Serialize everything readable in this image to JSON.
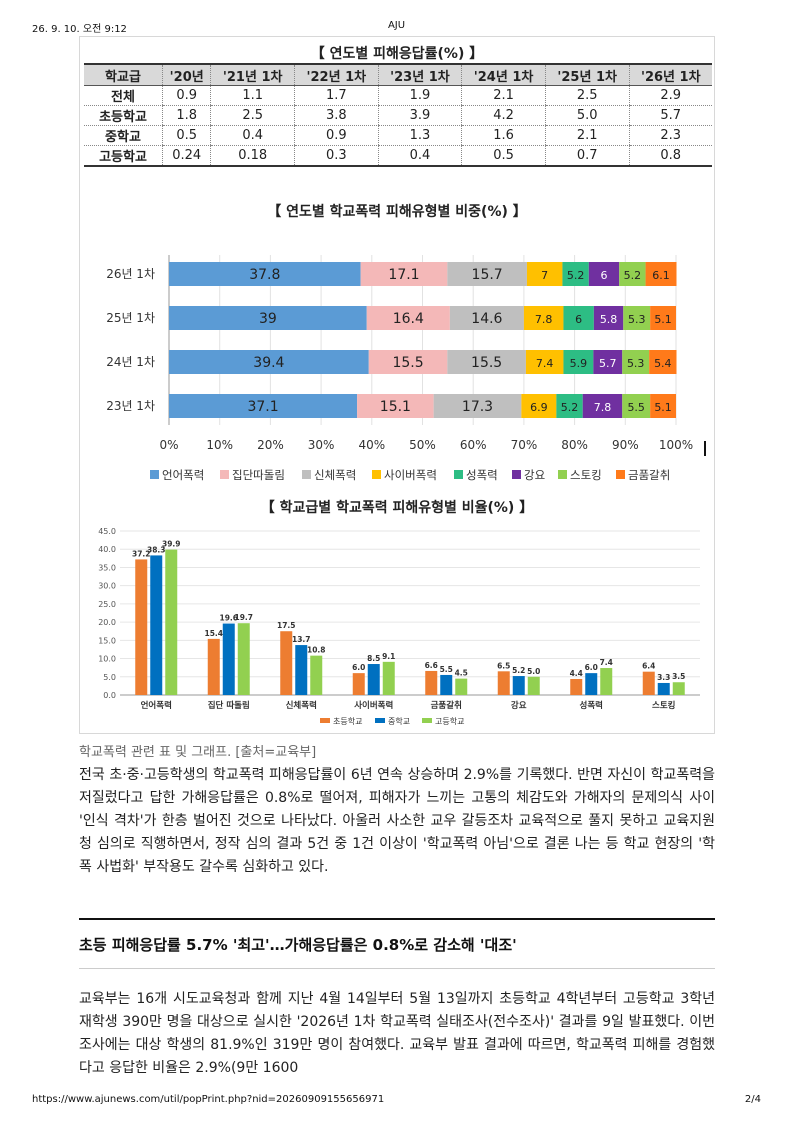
{
  "print_header": {
    "datetime": "26. 9. 10. 오전 9:12",
    "site": "AJU"
  },
  "print_footer": {
    "url": "https://www.ajunews.com/util/popPrint.php?nid=20260909155656971",
    "page": "2/4"
  },
  "table_rate": {
    "title": "【 연도별 피해응답률(%) 】",
    "columns": [
      "학교급",
      "'20년",
      "'21년 1차",
      "'22년 1차",
      "'23년 1차",
      "'24년 1차",
      "'25년 1차",
      "'26년 1차"
    ],
    "rows": [
      [
        "전체",
        "0.9",
        "1.1",
        "1.7",
        "1.9",
        "2.1",
        "2.5",
        "2.9"
      ],
      [
        "초등학교",
        "1.8",
        "2.5",
        "3.8",
        "3.9",
        "4.2",
        "5.0",
        "5.7"
      ],
      [
        "중학교",
        "0.5",
        "0.4",
        "0.9",
        "1.3",
        "1.6",
        "2.1",
        "2.3"
      ],
      [
        "고등학교",
        "0.24",
        "0.18",
        "0.3",
        "0.4",
        "0.5",
        "0.7",
        "0.8"
      ]
    ]
  },
  "chart_data": [
    {
      "type": "bar",
      "orientation": "horizontal-stacked",
      "title": "【 연도별 학교폭력 피해유형별 비중(%) 】",
      "categories": [
        "26년 1차",
        "25년 1차",
        "24년 1차",
        "23년 1차"
      ],
      "x_ticks": [
        "0%",
        "10%",
        "20%",
        "30%",
        "40%",
        "50%",
        "60%",
        "70%",
        "80%",
        "90%",
        "100%"
      ],
      "xlim": [
        0,
        100
      ],
      "legend_position": "bottom",
      "series": [
        {
          "name": "언어폭력",
          "color": "#5b9bd5",
          "values": [
            37.8,
            39,
            39.4,
            37.1
          ]
        },
        {
          "name": "집단따돌림",
          "color": "#f4b8b8",
          "values": [
            17.1,
            16.4,
            15.5,
            15.1
          ]
        },
        {
          "name": "신체폭력",
          "color": "#bfbfbf",
          "values": [
            15.7,
            14.6,
            15.5,
            17.3
          ]
        },
        {
          "name": "사이버폭력",
          "color": "#ffc000",
          "values": [
            7,
            7.8,
            7.4,
            6.9
          ]
        },
        {
          "name": "성폭력",
          "color": "#2dbd84",
          "values": [
            5.2,
            6,
            5.9,
            5.2
          ]
        },
        {
          "name": "강요",
          "color": "#7030a0",
          "values": [
            6,
            5.8,
            5.7,
            7.8
          ]
        },
        {
          "name": "스토킹",
          "color": "#92d050",
          "values": [
            5.2,
            5.3,
            5.3,
            5.5
          ]
        },
        {
          "name": "금품갈취",
          "color": "#ff7a1a",
          "values": [
            6.1,
            5.1,
            5.4,
            5.1
          ]
        }
      ]
    },
    {
      "type": "bar",
      "title": "【 학교급별 학교폭력 피해유형별 비율(%) 】",
      "categories": [
        "언어폭력",
        "집단 따돌림",
        "신체폭력",
        "사이버폭력",
        "금품갈취",
        "강요",
        "성폭력",
        "스토킹"
      ],
      "y_ticks": [
        "0.0",
        "5.0",
        "10.0",
        "15.0",
        "20.0",
        "25.0",
        "30.0",
        "35.0",
        "40.0",
        "45.0"
      ],
      "ylim": [
        0,
        45
      ],
      "legend_position": "bottom",
      "series": [
        {
          "name": "초등학교",
          "color": "#ed7d31",
          "values": [
            37.2,
            15.4,
            17.5,
            6.0,
            6.6,
            6.5,
            4.4,
            6.4
          ],
          "labels": [
            "37.2",
            "15.4",
            "17.5",
            "6.0",
            "6.6",
            "6.5",
            "4.4",
            "6.4"
          ]
        },
        {
          "name": "중학교",
          "color": "#0070c0",
          "values": [
            38.3,
            19.6,
            13.7,
            8.5,
            5.5,
            5.2,
            6.0,
            3.3
          ],
          "labels": [
            "38.3",
            "19.6",
            "13.7",
            "8.5",
            "5.5",
            "5.2",
            "6.0",
            "3.3"
          ]
        },
        {
          "name": "고등학교",
          "color": "#92d050",
          "values": [
            39.9,
            19.7,
            10.8,
            9.1,
            4.5,
            5.0,
            7.4,
            3.5
          ],
          "labels": [
            "39.9",
            "19.7",
            "10.8",
            "9.1",
            "4.5",
            "5.0",
            "7.4",
            "3.5"
          ]
        }
      ]
    }
  ],
  "article": {
    "caption": "학교폭력 관련 표 및 그래프. [출처=교육부]",
    "paragraph1": "전국 초·중·고등학생의 학교폭력 피해응답률이 6년 연속 상승하며 2.9%를 기록했다. 반면 자신이 학교폭력을 저질렀다고 답한 가해응답률은 0.8%로 떨어져, 피해자가 느끼는 고통의 체감도와 가해자의 문제의식 사이 '인식 격차'가 한층 벌어진 것으로 나타났다. 아울러 사소한 교우 갈등조차 교육적으로 풀지 못하고 교육지원청 심의로 직행하면서, 정작 심의 결과 5건 중 1건 이상이 '학교폭력 아님'으로 결론 나는 등 학교 현장의 '학폭 사법화' 부작용도 갈수록 심화하고 있다.",
    "subheading": "초등 피해응답률 5.7% '최고'…가해응답률은 0.8%로 감소해 '대조'",
    "paragraph2": "교육부는 16개 시도교육청과 함께 지난 4월 14일부터 5월 13일까지 초등학교 4학년부터 고등학교 3학년 재학생 390만 명을 대상으로 실시한 '2026년 1차 학교폭력 실태조사(전수조사)' 결과를 9일 발표했다. 이번 조사에는 대상 학생의 81.9%인 319만 명이 참여했다. 교육부 발표 결과에 따르면, 학교폭력 피해를 경험했다고 응답한 비율은 2.9%(9만 1600"
  }
}
